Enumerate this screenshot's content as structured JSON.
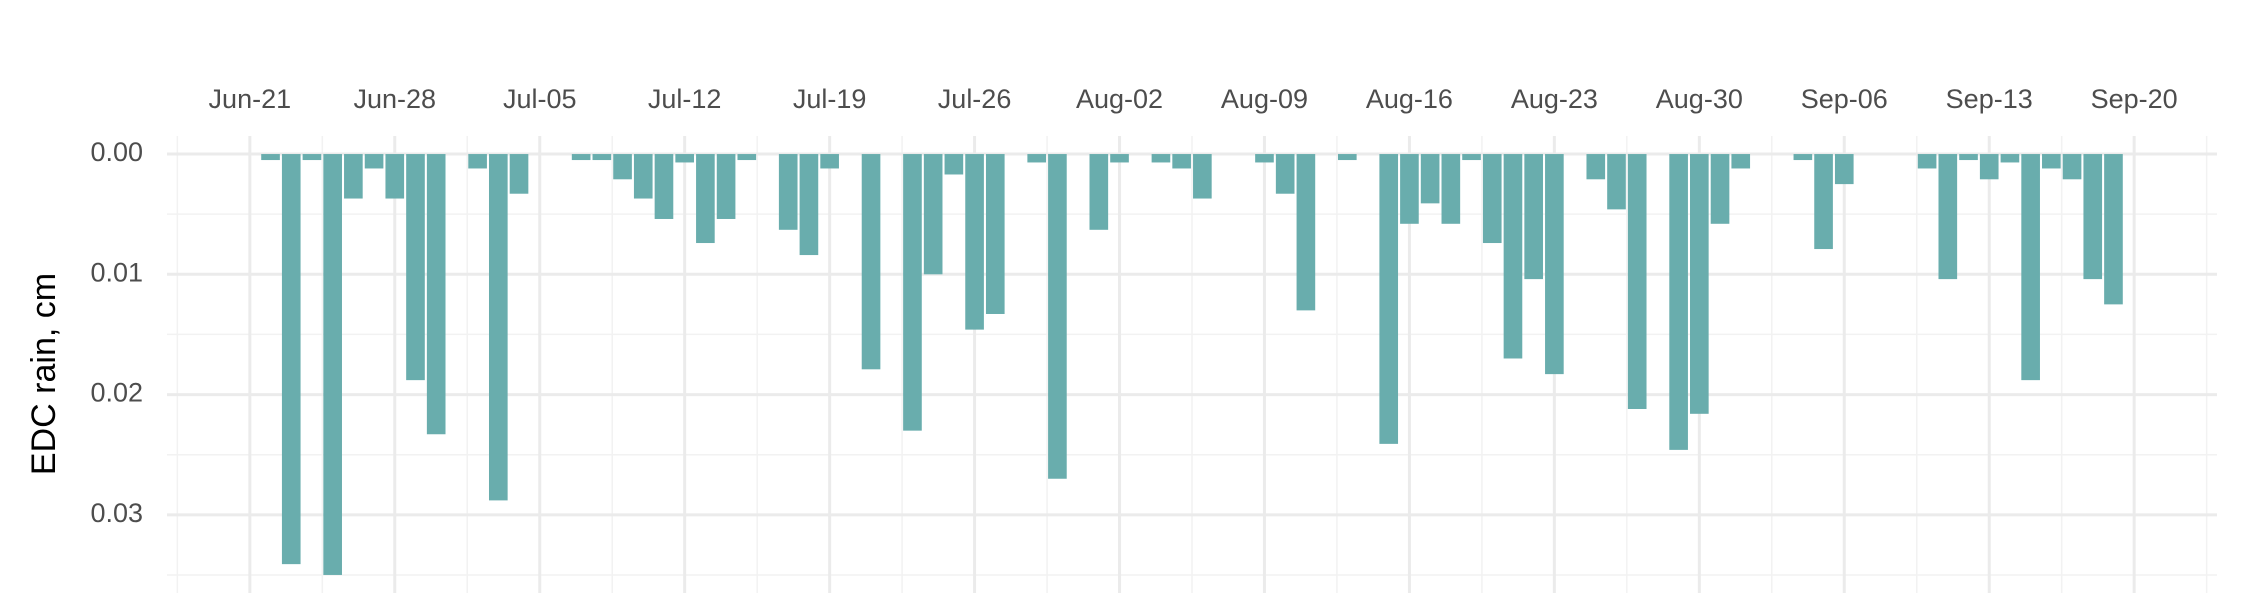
{
  "chart_data": {
    "type": "bar",
    "y_axis_label": "EDC rain, cm",
    "color": "#69adad",
    "y_reversed": true,
    "grid": true,
    "x_axis_position": "top",
    "x": [
      "Jun-22",
      "Jun-23",
      "Jun-24",
      "Jun-25",
      "Jun-26",
      "Jun-27",
      "Jun-28",
      "Jun-29",
      "Jun-30",
      "Jul-02",
      "Jul-03",
      "Jul-04",
      "Jul-07",
      "Jul-08",
      "Jul-09",
      "Jul-10",
      "Jul-11",
      "Jul-12",
      "Jul-13",
      "Jul-14",
      "Jul-15",
      "Jul-17",
      "Jul-18",
      "Jul-19",
      "Jul-21",
      "Jul-23",
      "Jul-24",
      "Jul-25",
      "Jul-26",
      "Jul-27",
      "Jul-29",
      "Jul-30",
      "Aug-01",
      "Aug-02",
      "Aug-04",
      "Aug-05",
      "Aug-06",
      "Aug-09",
      "Aug-10",
      "Aug-11",
      "Aug-13",
      "Aug-15",
      "Aug-16",
      "Aug-17",
      "Aug-18",
      "Aug-19",
      "Aug-20",
      "Aug-21",
      "Aug-22",
      "Aug-23",
      "Aug-25",
      "Aug-26",
      "Aug-27",
      "Aug-29",
      "Aug-30",
      "Aug-31",
      "Sep-01",
      "Sep-04",
      "Sep-05",
      "Sep-06",
      "Sep-10",
      "Sep-11",
      "Sep-12",
      "Sep-13",
      "Sep-14",
      "Sep-15",
      "Sep-16",
      "Sep-17",
      "Sep-18",
      "Sep-19"
    ],
    "values": [
      0.0005,
      0.0341,
      0.0005,
      0.035,
      0.0037,
      0.0012,
      0.0037,
      0.0188,
      0.0233,
      0.0012,
      0.0288,
      0.0033,
      0.0005,
      0.0005,
      0.0021,
      0.0037,
      0.0054,
      0.0007,
      0.0074,
      0.0054,
      0.0005,
      0.0063,
      0.0084,
      0.0012,
      0.0179,
      0.023,
      0.01,
      0.0017,
      0.0146,
      0.0133,
      0.0007,
      0.027,
      0.0063,
      0.0007,
      0.0007,
      0.0012,
      0.0037,
      0.0007,
      0.0033,
      0.013,
      0.0005,
      0.0241,
      0.0058,
      0.0041,
      0.0058,
      0.0005,
      0.0074,
      0.017,
      0.0104,
      0.0183,
      0.0021,
      0.0046,
      0.0212,
      0.0246,
      0.0216,
      0.0058,
      0.0012,
      0.0005,
      0.0079,
      0.0025,
      0.0012,
      0.0104,
      0.0005,
      0.0021,
      0.0007,
      0.0188,
      0.0012,
      0.0021,
      0.0104,
      0.0125
    ],
    "xlim": [
      "Jun-17",
      "Sep-24"
    ],
    "xticks": [
      "Jun-21",
      "Jun-28",
      "Jul-05",
      "Jul-12",
      "Jul-19",
      "Jul-26",
      "Aug-02",
      "Aug-09",
      "Aug-16",
      "Aug-23",
      "Aug-30",
      "Sep-06",
      "Sep-13",
      "Sep-20"
    ],
    "ylim": [
      -0.0015,
      0.0365
    ],
    "yticks": [
      {
        "value": 0,
        "label": "0.00"
      },
      0.01,
      0.02,
      0.03
    ]
  }
}
